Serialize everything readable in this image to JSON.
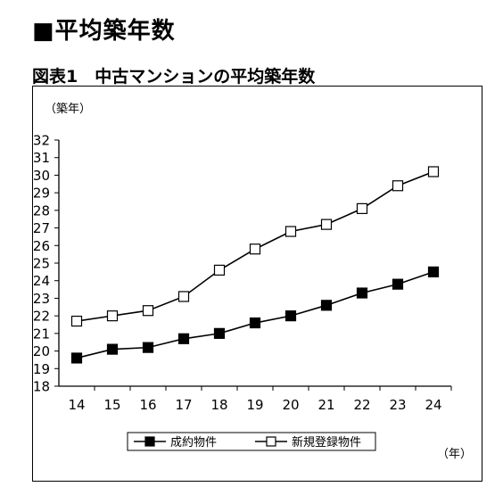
{
  "page": {
    "heading": "■平均築年数",
    "caption": "図表1　中古マンションの平均築年数"
  },
  "chart_data": {
    "type": "line",
    "ylabel": "（築年）",
    "xlabel": "（年）",
    "categories": [
      "14",
      "15",
      "16",
      "17",
      "18",
      "19",
      "20",
      "21",
      "22",
      "23",
      "24"
    ],
    "ylim": [
      18,
      32
    ],
    "yticks": [
      18,
      19,
      20,
      21,
      22,
      23,
      24,
      25,
      26,
      27,
      28,
      29,
      30,
      31,
      32
    ],
    "grid": false,
    "legend": "bottom-center",
    "series": [
      {
        "name": "成約物件",
        "marker": "filled-square",
        "values": [
          19.6,
          20.1,
          20.2,
          20.7,
          21.0,
          21.6,
          22.0,
          22.6,
          23.3,
          23.8,
          24.5
        ]
      },
      {
        "name": "新規登録物件",
        "marker": "open-square",
        "values": [
          21.7,
          22.0,
          22.3,
          23.1,
          24.6,
          25.8,
          26.8,
          27.2,
          28.1,
          29.4,
          30.2
        ]
      }
    ]
  }
}
